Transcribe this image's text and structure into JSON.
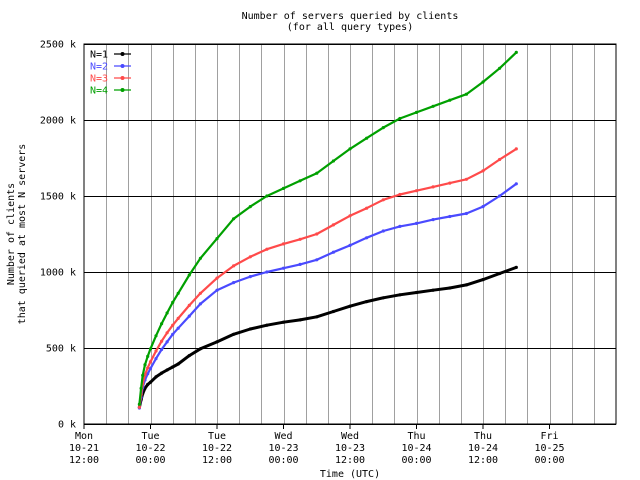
{
  "chart_data": {
    "type": "line",
    "title": "Number of servers queried by clients",
    "subtitle": "(for all query types)",
    "xlabel": "Time (UTC)",
    "ylabel_lines": [
      "Number of clients",
      "that queried at most N servers"
    ],
    "xlim": [
      0,
      96
    ],
    "ylim": [
      0,
      2500
    ],
    "x_unit": "hours since Mon 10-21 12:00",
    "x_ticks": [
      {
        "x": 0,
        "lines": [
          "Mon",
          "10-21",
          "12:00"
        ]
      },
      {
        "x": 12,
        "lines": [
          "Tue",
          "10-22",
          "00:00"
        ]
      },
      {
        "x": 24,
        "lines": [
          "Tue",
          "10-22",
          "12:00"
        ]
      },
      {
        "x": 36,
        "lines": [
          "Wed",
          "10-23",
          "00:00"
        ]
      },
      {
        "x": 48,
        "lines": [
          "Wed",
          "10-23",
          "12:00"
        ]
      },
      {
        "x": 60,
        "lines": [
          "Thu",
          "10-24",
          "00:00"
        ]
      },
      {
        "x": 72,
        "lines": [
          "Thu",
          "10-24",
          "12:00"
        ]
      },
      {
        "x": 84,
        "lines": [
          "Fri",
          "10-25",
          "00:00"
        ]
      }
    ],
    "y_ticks": [
      {
        "value": 0,
        "label": "0 k"
      },
      {
        "value": 500,
        "label": "500 k"
      },
      {
        "value": 1000,
        "label": "1000 k"
      },
      {
        "value": 1500,
        "label": "1500 k"
      },
      {
        "value": 2000,
        "label": "2000 k"
      },
      {
        "value": 2500,
        "label": "2500 k"
      }
    ],
    "grid": true,
    "grid_minor_step": 4,
    "legend_position": "top-left",
    "series": [
      {
        "name": "N=1",
        "color": "#000000",
        "x": [
          10,
          10.3,
          10.6,
          11,
          11.5,
          12,
          13,
          14,
          15,
          16,
          17,
          19,
          21,
          24,
          27,
          30,
          33,
          36,
          39,
          42,
          45,
          48,
          51,
          54,
          57,
          60,
          63,
          66,
          69,
          72,
          75,
          78
        ],
        "y": [
          110,
          160,
          200,
          235,
          260,
          275,
          310,
          335,
          355,
          375,
          395,
          450,
          495,
          540,
          590,
          625,
          650,
          670,
          685,
          705,
          740,
          775,
          805,
          830,
          850,
          865,
          880,
          895,
          915,
          950,
          990,
          1030
        ]
      },
      {
        "name": "N=2",
        "color": "#4a4aff",
        "x": [
          10,
          10.3,
          10.6,
          11,
          11.5,
          12,
          13,
          14,
          15,
          16,
          17,
          19,
          21,
          24,
          27,
          30,
          33,
          36,
          39,
          42,
          45,
          48,
          51,
          54,
          57,
          60,
          63,
          66,
          69,
          72,
          75,
          78
        ],
        "y": [
          105,
          175,
          240,
          290,
          330,
          365,
          430,
          490,
          540,
          590,
          630,
          710,
          790,
          880,
          930,
          970,
          1000,
          1025,
          1050,
          1080,
          1130,
          1175,
          1225,
          1270,
          1300,
          1320,
          1345,
          1365,
          1385,
          1430,
          1500,
          1580
        ]
      },
      {
        "name": "N=3",
        "color": "#ff4a4a",
        "x": [
          10,
          10.3,
          10.6,
          11,
          11.5,
          12,
          13,
          14,
          15,
          16,
          17,
          19,
          21,
          24,
          27,
          30,
          33,
          36,
          39,
          42,
          45,
          48,
          51,
          54,
          57,
          60,
          63,
          66,
          69,
          72,
          75,
          78
        ],
        "y": [
          110,
          195,
          265,
          325,
          370,
          410,
          480,
          545,
          600,
          650,
          695,
          780,
          860,
          960,
          1040,
          1100,
          1150,
          1185,
          1215,
          1250,
          1310,
          1370,
          1420,
          1475,
          1510,
          1535,
          1560,
          1585,
          1610,
          1665,
          1740,
          1810
        ]
      },
      {
        "name": "N=4",
        "color": "#00a000",
        "x": [
          10,
          10.3,
          10.6,
          11,
          11.5,
          12,
          13,
          14,
          15,
          16,
          17,
          19,
          21,
          24,
          27,
          30,
          33,
          36,
          39,
          42,
          45,
          48,
          51,
          54,
          57,
          60,
          63,
          66,
          69,
          72,
          75,
          78
        ],
        "y": [
          130,
          235,
          320,
          390,
          445,
          495,
          580,
          660,
          730,
          800,
          860,
          980,
          1090,
          1220,
          1350,
          1430,
          1500,
          1550,
          1600,
          1650,
          1730,
          1810,
          1880,
          1950,
          2010,
          2050,
          2090,
          2130,
          2170,
          2250,
          2340,
          2445
        ]
      }
    ]
  }
}
